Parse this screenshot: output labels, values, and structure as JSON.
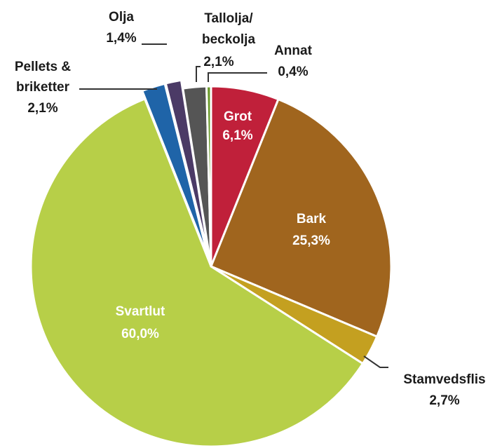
{
  "chart_data": {
    "type": "pie",
    "title": "",
    "start_angle_deg": 0,
    "direction": "clockwise",
    "slices": [
      {
        "name": "Grot",
        "value": 6.1,
        "label": "6,1%",
        "color": "#c0203a",
        "explode": 0,
        "label_color": "light"
      },
      {
        "name": "Bark",
        "value": 25.3,
        "label": "25,3%",
        "color": "#a0651e",
        "explode": 0,
        "label_color": "light"
      },
      {
        "name": "Stamvedsflis",
        "value": 2.7,
        "label": "2,7%",
        "color": "#c4a020",
        "explode": 0,
        "label_color": "dark"
      },
      {
        "name": "Svartlut",
        "value": 60.0,
        "label": "60,0%",
        "color": "#b7cf48",
        "explode": 0,
        "label_color": "light"
      },
      {
        "name": "Pellets & briketter",
        "value": 2.1,
        "label": "2,1%",
        "color": "#1f64a8",
        "explode": 1,
        "label_color": "dark"
      },
      {
        "name": "Olja",
        "value": 1.4,
        "label": "1,4%",
        "color": "#4b3a66",
        "explode": 1,
        "label_color": "dark"
      },
      {
        "name": "Tallolja/ beckolja",
        "value": 2.1,
        "label": "2,1%",
        "color": "#555555",
        "explode": 0,
        "label_color": "dark"
      },
      {
        "name": "Annat",
        "value": 0.4,
        "label": "0,4%",
        "color": "#6a9a2a",
        "explode": 0,
        "label_color": "dark"
      }
    ]
  },
  "labels": {
    "grot_name": "Grot",
    "grot_value": "6,1%",
    "bark_name": "Bark",
    "bark_value": "25,3%",
    "stamvedsflis_name": "Stamvedsflis",
    "stamvedsflis_value": "2,7%",
    "svartlut_name": "Svartlut",
    "svartlut_value": "60,0%",
    "pellets_name_1": "Pellets &",
    "pellets_name_2": "briketter",
    "pellets_value": "2,1%",
    "olja_name": "Olja",
    "olja_value": "1,4%",
    "tallolja_name_1": "Tallolja/",
    "tallolja_name_2": "beckolja",
    "tallolja_value": "2,1%",
    "annat_name": "Annat",
    "annat_value": "0,4%"
  }
}
